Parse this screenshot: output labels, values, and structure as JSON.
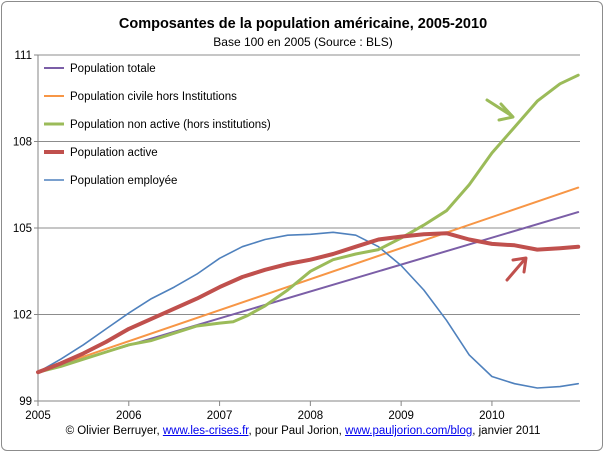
{
  "chart_data": {
    "type": "line",
    "title": "Composantes de la population américaine, 2005-2010",
    "subtitle": "Base  100 en 2005 (Source : BLS)",
    "xlim": [
      2005,
      2010.97
    ],
    "ylim": [
      99,
      111
    ],
    "x_ticks": [
      "2005",
      "2006",
      "2007",
      "2008",
      "2009",
      "2010"
    ],
    "y_ticks": [
      "99",
      "102",
      "105",
      "108",
      "111"
    ],
    "grid": "horizontal",
    "legend": "top-left",
    "series": [
      {
        "name": "Population totale",
        "color": "#7b5ea7",
        "points": [
          [
            2005.0,
            100.0
          ],
          [
            2010.95,
            105.55
          ]
        ]
      },
      {
        "name": "Population civile hors Institutions",
        "color": "#f79646",
        "points": [
          [
            2005.0,
            100.0
          ],
          [
            2010.95,
            106.4
          ]
        ]
      },
      {
        "name": "Population non active (hors institutions)",
        "color": "#9bbb59",
        "points": [
          [
            2005.0,
            100.0
          ],
          [
            2005.25,
            100.2
          ],
          [
            2005.5,
            100.45
          ],
          [
            2005.75,
            100.7
          ],
          [
            2006.0,
            100.95
          ],
          [
            2006.25,
            101.1
          ],
          [
            2006.5,
            101.35
          ],
          [
            2006.75,
            101.6
          ],
          [
            2007.0,
            101.7
          ],
          [
            2007.15,
            101.75
          ],
          [
            2007.3,
            101.95
          ],
          [
            2007.5,
            102.3
          ],
          [
            2007.75,
            102.85
          ],
          [
            2008.0,
            103.5
          ],
          [
            2008.25,
            103.9
          ],
          [
            2008.5,
            104.1
          ],
          [
            2008.75,
            104.25
          ],
          [
            2009.0,
            104.65
          ],
          [
            2009.25,
            105.1
          ],
          [
            2009.5,
            105.6
          ],
          [
            2009.75,
            106.5
          ],
          [
            2010.0,
            107.6
          ],
          [
            2010.25,
            108.5
          ],
          [
            2010.5,
            109.4
          ],
          [
            2010.75,
            110.0
          ],
          [
            2010.95,
            110.3
          ]
        ]
      },
      {
        "name": "Population active",
        "color": "#c0504d",
        "points": [
          [
            2005.0,
            100.0
          ],
          [
            2005.25,
            100.3
          ],
          [
            2005.5,
            100.65
          ],
          [
            2005.75,
            101.05
          ],
          [
            2006.0,
            101.5
          ],
          [
            2006.25,
            101.85
          ],
          [
            2006.5,
            102.2
          ],
          [
            2006.75,
            102.55
          ],
          [
            2007.0,
            102.95
          ],
          [
            2007.25,
            103.3
          ],
          [
            2007.5,
            103.55
          ],
          [
            2007.75,
            103.75
          ],
          [
            2008.0,
            103.9
          ],
          [
            2008.25,
            104.1
          ],
          [
            2008.5,
            104.35
          ],
          [
            2008.75,
            104.6
          ],
          [
            2009.0,
            104.7
          ],
          [
            2009.25,
            104.78
          ],
          [
            2009.5,
            104.82
          ],
          [
            2009.75,
            104.6
          ],
          [
            2010.0,
            104.45
          ],
          [
            2010.25,
            104.4
          ],
          [
            2010.5,
            104.25
          ],
          [
            2010.75,
            104.3
          ],
          [
            2010.95,
            104.35
          ]
        ]
      },
      {
        "name": "Population employée",
        "color": "#4f81bd",
        "points": [
          [
            2005.0,
            100.0
          ],
          [
            2005.25,
            100.45
          ],
          [
            2005.5,
            100.95
          ],
          [
            2005.75,
            101.5
          ],
          [
            2006.0,
            102.05
          ],
          [
            2006.25,
            102.55
          ],
          [
            2006.5,
            102.95
          ],
          [
            2006.75,
            103.4
          ],
          [
            2007.0,
            103.95
          ],
          [
            2007.25,
            104.35
          ],
          [
            2007.5,
            104.6
          ],
          [
            2007.75,
            104.75
          ],
          [
            2008.0,
            104.78
          ],
          [
            2008.25,
            104.85
          ],
          [
            2008.5,
            104.75
          ],
          [
            2008.75,
            104.35
          ],
          [
            2009.0,
            103.7
          ],
          [
            2009.25,
            102.85
          ],
          [
            2009.5,
            101.8
          ],
          [
            2009.75,
            100.6
          ],
          [
            2010.0,
            99.85
          ],
          [
            2010.25,
            99.6
          ],
          [
            2010.5,
            99.45
          ],
          [
            2010.75,
            99.5
          ],
          [
            2010.95,
            99.6
          ]
        ]
      }
    ]
  },
  "footer": {
    "prefix": "© Olivier Berruyer, ",
    "link1": "www.les-crises.fr",
    "middle": ", pour Paul Jorion, ",
    "link2": "www.pauljorion.com/blog",
    "suffix": ", janvier 2011"
  },
  "annotations": {
    "green_arrow_color": "#9bbb59",
    "red_arrow_color": "#c0504d"
  }
}
